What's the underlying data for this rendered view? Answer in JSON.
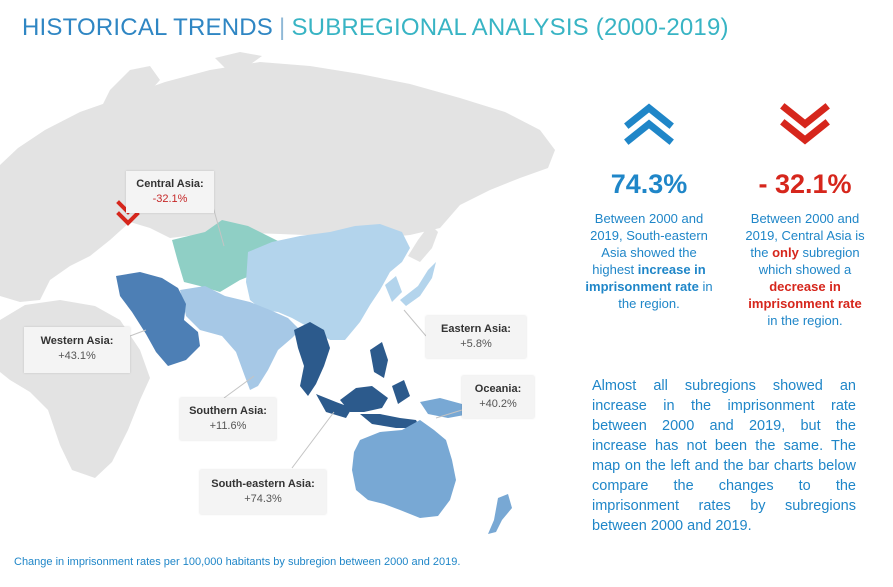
{
  "header": {
    "title_main": "HISTORICAL TRENDS",
    "separator": "|",
    "title_sub": "SUBREGIONAL ANALYSIS (2000-2019)"
  },
  "colors": {
    "central_asia": "#8fcfc5",
    "eastern_asia": "#b3d4ec",
    "southern_asia": "#a6c8e6",
    "western_asia": "#4d7fb5",
    "south_eastern_asia": "#2c5a8c",
    "oceania": "#78a8d4",
    "background_land": "#e3e3e3",
    "increase": "#1f86c8",
    "decrease": "#d6261c"
  },
  "map": {
    "callouts": [
      {
        "name": "Central Asia:",
        "value": "-32.1%"
      },
      {
        "name": "Eastern Asia:",
        "value": "+5.8%"
      },
      {
        "name": "Western Asia:",
        "value": "+43.1%"
      },
      {
        "name": "Oceania:",
        "value": "+40.2%"
      },
      {
        "name": "Southern Asia:",
        "value": "+11.6%"
      },
      {
        "name": "South-eastern Asia:",
        "value": "+74.3%"
      }
    ]
  },
  "highlights": {
    "increase": {
      "icon": "double-chevron-up-icon",
      "value": "74.3%",
      "desc_pre": "Between 2000 and 2019, South-eastern Asia showed the highest ",
      "desc_bold": "increase in imprisonment rate",
      "desc_post": " in the region."
    },
    "decrease": {
      "icon": "double-chevron-down-icon",
      "value": "- 32.1%",
      "desc_pre": "Between 2000 and 2019, Central Asia is the ",
      "desc_bold1": "only",
      "desc_mid": " subregion which showed a ",
      "desc_bold2": "decrease in imprisonment rate",
      "desc_post": " in the region."
    }
  },
  "paragraph": "Almost all subregions showed an increase in the imprisonment rate between 2000 and 2019, but the increase has not been the same. The map on the left and the bar charts below compare the changes to the imprisonment rates by subregions between 2000 and 2019.",
  "footer": "Change in imprisonment rates per 100,000 habitants by subregion between 2000 and 2019."
}
